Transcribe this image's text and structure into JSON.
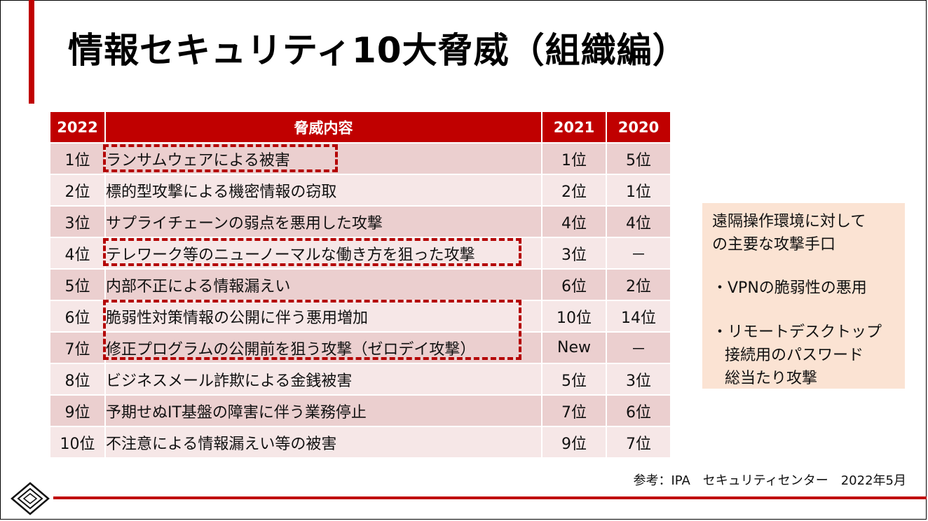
{
  "title": "情報セキュリティ10大脅威（組織編）",
  "table": {
    "headers": [
      "2022",
      "脅威内容",
      "2021",
      "2020"
    ],
    "rows": [
      {
        "rank": "1位",
        "content": "ランサムウェアによる被害",
        "y2021": "1位",
        "y2020": "5位"
      },
      {
        "rank": "2位",
        "content": "標的型攻撃による機密情報の窃取",
        "y2021": "2位",
        "y2020": "1位"
      },
      {
        "rank": "3位",
        "content": "サプライチェーンの弱点を悪用した攻撃",
        "y2021": "4位",
        "y2020": "4位"
      },
      {
        "rank": "4位",
        "content": "テレワーク等のニューノーマルな働き方を狙った攻撃",
        "y2021": "3位",
        "y2020": "－"
      },
      {
        "rank": "5位",
        "content": "内部不正による情報漏えい",
        "y2021": "6位",
        "y2020": "2位"
      },
      {
        "rank": "6位",
        "content": "脆弱性対策情報の公開に伴う悪用増加",
        "y2021": "10位",
        "y2020": "14位"
      },
      {
        "rank": "7位",
        "content": "修正プログラムの公開前を狙う攻撃（ゼロデイ攻撃）",
        "y2021": "New",
        "y2020": "－"
      },
      {
        "rank": "8位",
        "content": "ビジネスメール詐欺による金銭被害",
        "y2021": "5位",
        "y2020": "3位"
      },
      {
        "rank": "9位",
        "content": "予期せぬIT基盤の障害に伴う業務停止",
        "y2021": "7位",
        "y2020": "6位"
      },
      {
        "rank": "10位",
        "content": "不注意による情報漏えい等の被害",
        "y2021": "9位",
        "y2020": "7位"
      }
    ]
  },
  "side_box": {
    "heading_line1": "遠隔操作環境に対して",
    "heading_line2": "の主要な攻撃手口",
    "bullet1": "・VPNの脆弱性の悪用",
    "bullet2_line1": "・リモートデスクトップ",
    "bullet2_line2": "接続用のパスワード",
    "bullet2_line3": "総当たり攻撃"
  },
  "source": "参考：IPA　セキュリティセンター　2022年5月",
  "colors": {
    "accent": "#c00000",
    "row_dark": "#ebcfcf",
    "row_light": "#f6e7e7",
    "side_box": "#fbe3d3"
  }
}
